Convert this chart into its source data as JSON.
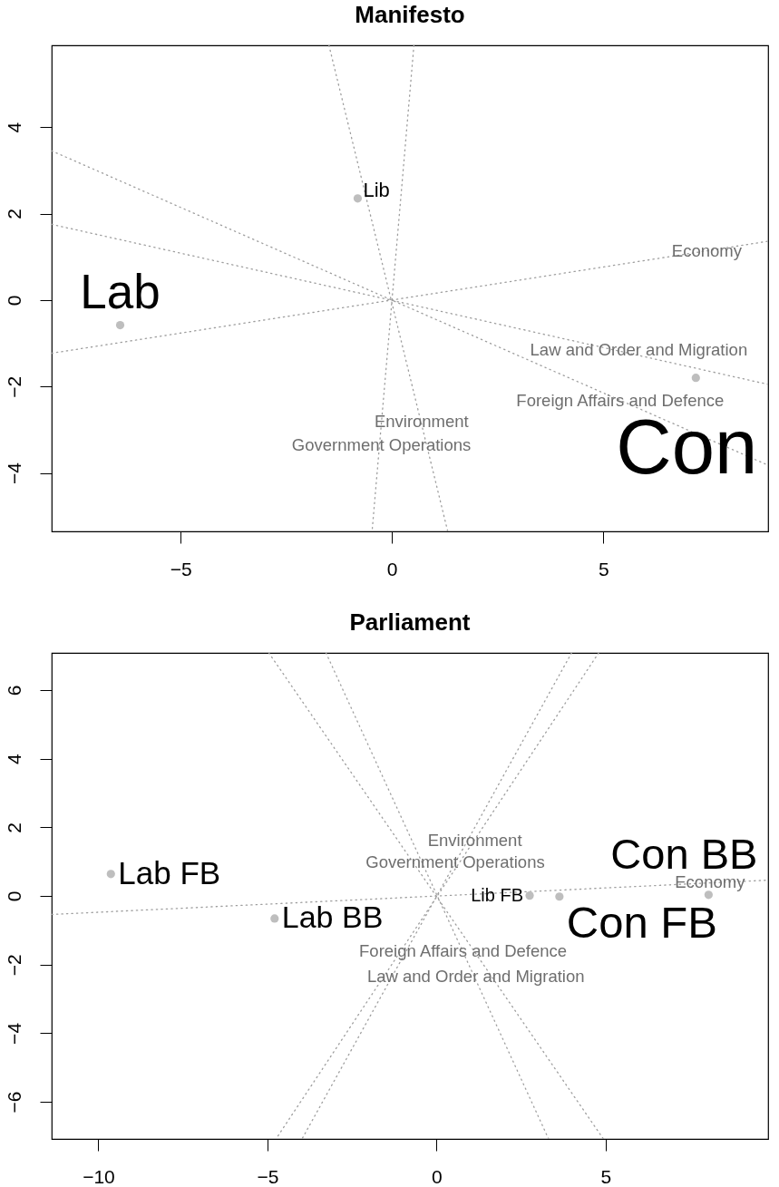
{
  "chart_data": [
    {
      "type": "scatter",
      "title": "Manifesto",
      "xlim": [
        -8.05,
        8.9
      ],
      "ylim": [
        -5.35,
        5.89
      ],
      "xticks": [
        -5,
        0,
        5
      ],
      "yticks": [
        -4,
        -2,
        0,
        2,
        4
      ],
      "marker": "circle",
      "line_style": "dotted",
      "series": [
        {
          "name": "Lab",
          "color": "#bebebe",
          "x": [
            -6.43
          ],
          "values": [
            -0.58
          ]
        },
        {
          "name": "Lib",
          "color": "#bebebe",
          "x": [
            -0.81
          ],
          "values": [
            2.35
          ]
        },
        {
          "name": "Con",
          "color": "#bebebe",
          "x": [
            7.19
          ],
          "values": [
            -1.8
          ]
        },
        {
          "type": "line",
          "marker": "none",
          "color": "#9e9e9e",
          "x": [
            -8.05,
            8.9
          ],
          "values": [
            -1.23,
            1.36
          ]
        },
        {
          "type": "line",
          "marker": "none",
          "color": "#9e9e9e",
          "x": [
            -8.05,
            8.9
          ],
          "values": [
            3.45,
            -3.82
          ]
        },
        {
          "type": "line",
          "marker": "none",
          "color": "#9e9e9e",
          "x": [
            -8.05,
            8.9
          ],
          "values": [
            1.75,
            -1.95
          ]
        },
        {
          "type": "line",
          "marker": "none",
          "color": "#9e9e9e",
          "x": [
            -1.49,
            1.32
          ],
          "values": [
            5.89,
            -5.35
          ]
        },
        {
          "type": "line",
          "marker": "none",
          "color": "#9e9e9e",
          "x": [
            0.52,
            -0.47
          ],
          "values": [
            5.89,
            -5.35
          ]
        }
      ],
      "annotations": [
        {
          "text": "Economy",
          "x": 7.45,
          "y": 1.14
        },
        {
          "text": "Law and Order and Migration",
          "x": 5.84,
          "y": -1.15
        },
        {
          "text": "Foreign Affairs and Defence",
          "x": 5.4,
          "y": -2.32
        },
        {
          "text": "Environment",
          "x": 0.7,
          "y": -2.82
        },
        {
          "text": "Government Operations",
          "x": -0.25,
          "y": -3.36
        }
      ]
    },
    {
      "type": "scatter",
      "title": "Parliament",
      "xlim": [
        -11.38,
        9.8
      ],
      "ylim": [
        -7.08,
        7.08
      ],
      "xticks": [
        -10,
        -5,
        0,
        5
      ],
      "yticks": [
        -6,
        -4,
        -2,
        0,
        2,
        4,
        6
      ],
      "marker": "circle",
      "line_style": "dotted",
      "series": [
        {
          "name": "Lab FB",
          "color": "#bebebe",
          "x": [
            -9.63
          ],
          "values": [
            0.64
          ]
        },
        {
          "name": "Lab BB",
          "color": "#bebebe",
          "x": [
            -4.79
          ],
          "values": [
            -0.66
          ]
        },
        {
          "name": "Lib FB",
          "color": "#bebebe",
          "x": [
            2.75
          ],
          "values": [
            0.01
          ]
        },
        {
          "name": "Con FB",
          "color": "#bebebe",
          "x": [
            3.63
          ],
          "values": [
            -0.02
          ]
        },
        {
          "name": "Con BB",
          "color": "#bebebe",
          "x": [
            8.04
          ],
          "values": [
            0.03
          ]
        },
        {
          "type": "line",
          "marker": "none",
          "color": "#9e9e9e",
          "x": [
            -11.38,
            9.8
          ],
          "values": [
            -0.54,
            0.46
          ]
        },
        {
          "type": "line",
          "marker": "none",
          "color": "#9e9e9e",
          "x": [
            -4.96,
            4.93
          ],
          "values": [
            7.08,
            -7.08
          ]
        },
        {
          "type": "line",
          "marker": "none",
          "color": "#9e9e9e",
          "x": [
            -3.27,
            3.31
          ],
          "values": [
            7.08,
            -7.08
          ]
        },
        {
          "type": "line",
          "marker": "none",
          "color": "#9e9e9e",
          "x": [
            3.99,
            -3.98
          ],
          "values": [
            7.08,
            -7.08
          ]
        },
        {
          "type": "line",
          "marker": "none",
          "color": "#9e9e9e",
          "x": [
            4.79,
            -4.75
          ],
          "values": [
            7.08,
            -7.08
          ]
        }
      ],
      "annotations": [
        {
          "text": "Environment",
          "x": 1.13,
          "y": 1.62
        },
        {
          "text": "Government Operations",
          "x": 0.55,
          "y": 0.97
        },
        {
          "text": "Foreign Affairs and Defence",
          "x": 0.78,
          "y": -1.61
        },
        {
          "text": "Law and Order and Migration",
          "x": 1.16,
          "y": -2.35
        },
        {
          "text": "Economy",
          "x": 8.08,
          "y": 0.4
        }
      ]
    }
  ]
}
